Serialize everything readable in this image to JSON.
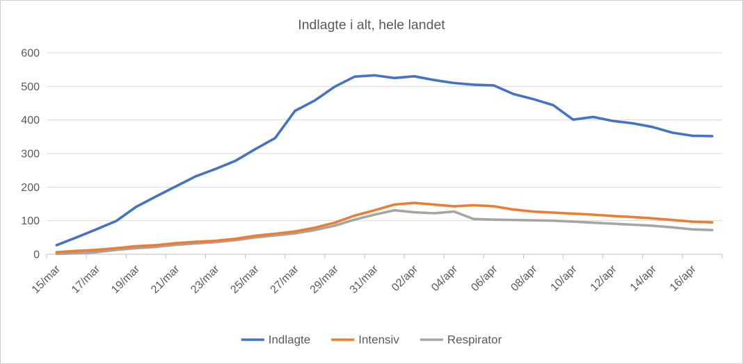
{
  "figure": {
    "title": "Indlagte i alt, hele landet"
  },
  "chart_data": {
    "type": "line",
    "x": [
      "15/mar",
      "16/mar",
      "17/mar",
      "18/mar",
      "19/mar",
      "20/mar",
      "21/mar",
      "22/mar",
      "23/mar",
      "24/mar",
      "25/mar",
      "26/mar",
      "27/mar",
      "28/mar",
      "29/mar",
      "30/mar",
      "31/mar",
      "01/apr",
      "02/apr",
      "03/apr",
      "04/apr",
      "05/apr",
      "06/apr",
      "07/apr",
      "08/apr",
      "09/apr",
      "10/apr",
      "11/apr",
      "12/apr",
      "13/apr",
      "14/apr",
      "15/apr",
      "16/apr",
      "17/apr"
    ],
    "x_tick_labels": [
      "15/mar",
      "17/mar",
      "19/mar",
      "21/mar",
      "23/mar",
      "25/mar",
      "27/mar",
      "29/mar",
      "31/mar",
      "02/apr",
      "04/apr",
      "06/apr",
      "08/apr",
      "10/apr",
      "12/apr",
      "14/apr",
      "16/apr"
    ],
    "series": [
      {
        "name": "Indlagte",
        "color": "#4472C4",
        "values": [
          27,
          50,
          74,
          99,
          141,
          172,
          202,
          232,
          254,
          278,
          313,
          346,
          427,
          458,
          499,
          529,
          533,
          525,
          530,
          519,
          510,
          505,
          503,
          477,
          462,
          444,
          401,
          409,
          397,
          390,
          379,
          362,
          353,
          352
        ]
      },
      {
        "name": "Intensiv",
        "color": "#ED7D31",
        "values": [
          6,
          10,
          13,
          18,
          24,
          27,
          33,
          37,
          40,
          46,
          55,
          61,
          68,
          79,
          94,
          115,
          131,
          148,
          153,
          148,
          143,
          146,
          143,
          133,
          127,
          124,
          121,
          118,
          114,
          111,
          107,
          102,
          97,
          95
        ]
      },
      {
        "name": "Respirator",
        "color": "#A5A5A5",
        "values": [
          1,
          3,
          6,
          13,
          18,
          22,
          28,
          32,
          36,
          42,
          50,
          56,
          62,
          72,
          85,
          103,
          118,
          131,
          125,
          122,
          127,
          105,
          103,
          102,
          101,
          100,
          97,
          94,
          91,
          88,
          85,
          80,
          74,
          72
        ]
      }
    ],
    "ylim": [
      0,
      600
    ],
    "ytick_interval": 100,
    "ytick_labels": [
      "0",
      "100",
      "200",
      "300",
      "400",
      "500",
      "600"
    ],
    "grid": "horizontal",
    "legend_position": "bottom",
    "legend": [
      "Indlagte",
      "Intensiv",
      "Respirator"
    ]
  },
  "colors": {
    "title_text": "#595959",
    "axis_text": "#595959",
    "gridline": "#D9D9D9",
    "axis_line": "#BFBFBF",
    "series_blue": "#4472C4",
    "series_orange": "#ED7D31",
    "series_gray": "#A5A5A5"
  }
}
